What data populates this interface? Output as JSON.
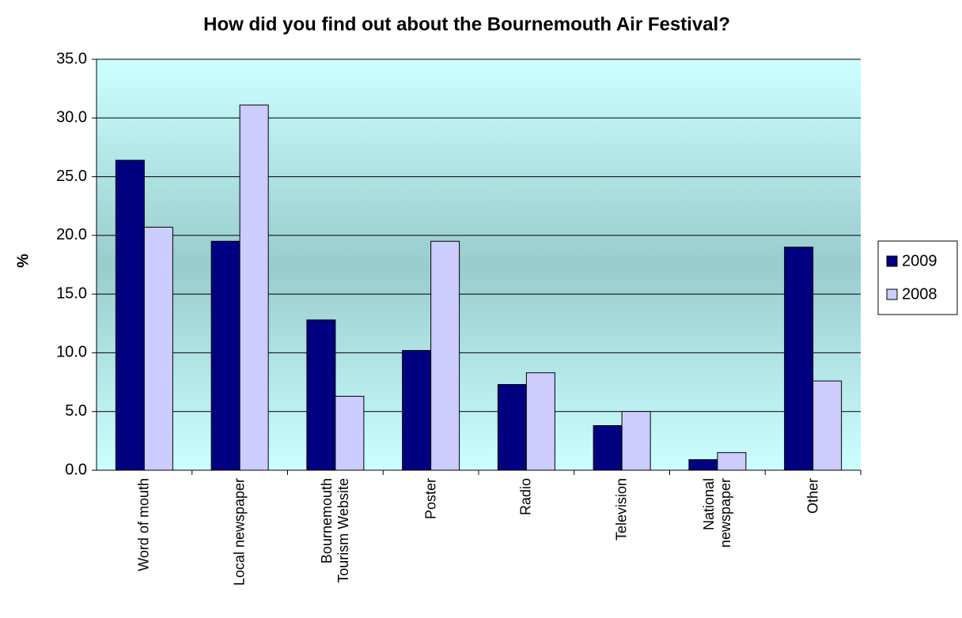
{
  "chart_data": {
    "type": "bar",
    "title": "How did you find out about the Bournemouth Air Festival?",
    "y_label": "%",
    "categories": [
      "Word of mouth",
      "Local newspaper",
      "Bournemouth\nTourism Website",
      "Poster",
      "Radio",
      "Television",
      "National\nnewspaper",
      "Other"
    ],
    "series": [
      {
        "name": "2009",
        "color": "#000080",
        "values": [
          26.4,
          19.5,
          12.8,
          10.2,
          7.3,
          3.8,
          0.9,
          19.0
        ]
      },
      {
        "name": "2008",
        "color": "#ccccff",
        "values": [
          20.7,
          31.1,
          6.3,
          19.5,
          8.3,
          5.0,
          1.5,
          7.6
        ]
      }
    ],
    "ylim": [
      0,
      35
    ],
    "yticks": [
      {
        "value": 0,
        "label": "0.0"
      },
      {
        "value": 5,
        "label": "5.0"
      },
      {
        "value": 10,
        "label": "10.0"
      },
      {
        "value": 15,
        "label": "15.0"
      },
      {
        "value": 20,
        "label": "20.0"
      },
      {
        "value": 25,
        "label": "25.0"
      },
      {
        "value": 30,
        "label": "30.0"
      },
      {
        "value": 35,
        "label": "35.0"
      }
    ],
    "grid": true,
    "legend": "right"
  }
}
